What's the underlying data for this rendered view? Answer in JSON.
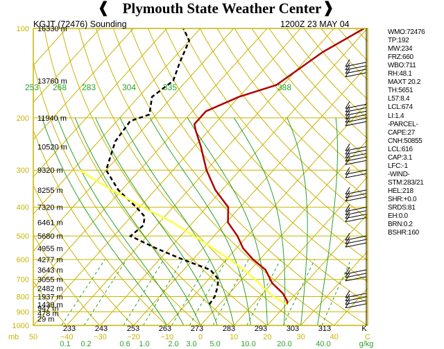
{
  "header": {
    "title": "Plymouth State Weather Center",
    "station": "KGJT (72476) Sounding",
    "time": "1200Z 23 MAY 04"
  },
  "colors": {
    "temperature": "#b00000",
    "dewpoint": "#000000",
    "parcel": "#ffff40",
    "isotherm": "#c8b400",
    "dry_adiabat": "#c8b400",
    "moist_adiabat": "#2aa02a",
    "mixing_ratio": "#2aa02a",
    "text_gold": "#c8b400",
    "text_green": "#2aa02a"
  },
  "stats": [
    "WMO:72476",
    "TP:192",
    "MW:234",
    "FRZ:660",
    "WBO:711",
    "RH:48.1",
    "MAXT 20.2",
    "TH:5651",
    "L57:8.4",
    "LCL:674",
    "LI:1.4",
    "-PARCEL-",
    "CAPE:27",
    "CNH:50855",
    "LCL:616",
    "CAP:3.1",
    "LFC:-1",
    "-WIND-",
    "STM:283/21",
    "HEL:218",
    "SHR:+0.0",
    "SRDS:81",
    "EH:0.0",
    "BRN:0.2",
    "BSHR:160"
  ],
  "chart_data": {
    "type": "line",
    "title": "",
    "xlabel": "",
    "ylabel": "mb",
    "ylim": [
      1000,
      100
    ],
    "xlim": [
      -50,
      50
    ],
    "pressure_ticks": [
      100,
      200,
      300,
      400,
      500,
      600,
      700,
      800,
      900,
      1000
    ],
    "pressure_labels": [
      "100",
      "200",
      "300",
      "400",
      "500",
      "600",
      "700",
      "800",
      "900",
      "1000"
    ],
    "height_labels": [
      {
        "p": 100,
        "label": "16330 m"
      },
      {
        "p": 150,
        "label": "13760 m"
      },
      {
        "p": 200,
        "label": "11940 m"
      },
      {
        "p": 250,
        "label": "10520 m"
      },
      {
        "p": 300,
        "label": "9320 m"
      },
      {
        "p": 350,
        "label": "8255 m"
      },
      {
        "p": 400,
        "label": "7320 m"
      },
      {
        "p": 450,
        "label": "6461 m"
      },
      {
        "p": 500,
        "label": "5680 m"
      },
      {
        "p": 550,
        "label": "4955 m"
      },
      {
        "p": 600,
        "label": "4277 m"
      },
      {
        "p": 650,
        "label": "3643 m"
      },
      {
        "p": 700,
        "label": "3055 m"
      },
      {
        "p": 750,
        "label": "2482 m"
      },
      {
        "p": 800,
        "label": "1937 m"
      },
      {
        "p": 850,
        "label": "1439 m"
      },
      {
        "p": 875,
        "label": "947 m"
      },
      {
        "p": 910,
        "label": "478 m"
      },
      {
        "p": 950,
        "label": "29 m"
      }
    ],
    "temp_ticks": [
      -50,
      -40,
      -30,
      -20,
      -10,
      0,
      10,
      20,
      30,
      40,
      50
    ],
    "temp_tick_labels": [
      "50",
      "−40",
      "−30",
      "−20",
      "−10",
      "0",
      "10",
      "20",
      "30",
      "40",
      "C"
    ],
    "kelvin_ticks": [
      233,
      243,
      253,
      263,
      273,
      283,
      293,
      303,
      313
    ],
    "kelvin_tick_labels": [
      "233",
      "243",
      "253",
      "263",
      "273",
      "283",
      "293",
      "303",
      "313",
      "K"
    ],
    "theta_labels": [
      "253",
      "268",
      "283",
      "304",
      "335",
      "388"
    ],
    "mixing_ratio_labels": [
      "0.1",
      "0.2",
      "0.6",
      "1.0",
      "2.0",
      "3.0",
      "5.0",
      "10.0",
      "20.0",
      "40.0",
      "g/kg"
    ],
    "series": [
      {
        "name": "temperature",
        "x": [
          20.2,
          19.5,
          16.0,
          10.0,
          4.5,
          -2.0,
          -8.0,
          -13.0,
          -19.5,
          -23.5,
          -32.0,
          -40.0,
          -48.0,
          -54.0,
          -56.0,
          -56.0,
          -50.0,
          -42.0,
          -40.0,
          -37.0,
          -31.0
        ],
        "y": [
          850,
          830,
          780,
          720,
          650,
          600,
          550,
          500,
          450,
          400,
          350,
          300,
          250,
          220,
          210,
          190,
          170,
          155,
          140,
          120,
          100
        ]
      },
      {
        "name": "dewpoint",
        "x": [
          -3.0,
          -3.5,
          -5.0,
          -7.0,
          -12.0,
          -23.0,
          -34.0,
          -45.0,
          -44.0,
          -46.0,
          -51.0,
          -61.0,
          -70.0,
          -75.0,
          -76.0,
          -72.0,
          -76.0,
          -74.0,
          -77.0,
          -80.0,
          -85.0
        ],
        "y": [
          850,
          800,
          750,
          700,
          650,
          600,
          550,
          500,
          460,
          430,
          400,
          350,
          300,
          240,
          205,
          195,
          170,
          150,
          130,
          110,
          100
        ]
      },
      {
        "name": "parcel",
        "x": [
          20.2,
          14.0,
          9.0,
          4.0,
          -2.0,
          -9.0,
          -17.0,
          -26.0,
          -36.0,
          -49.0,
          -63.0,
          -78.0
        ],
        "y": [
          850,
          800,
          750,
          700,
          650,
          600,
          550,
          500,
          450,
          400,
          350,
          300
        ]
      }
    ],
    "wind_levels": [
      {
        "p": 130,
        "count": 4
      },
      {
        "p": 180,
        "count": 6
      },
      {
        "p": 250,
        "count": 5
      },
      {
        "p": 300,
        "count": 2
      },
      {
        "p": 350,
        "count": 3
      },
      {
        "p": 400,
        "count": 4
      },
      {
        "p": 500,
        "count": 3
      },
      {
        "p": 650,
        "count": 3
      },
      {
        "p": 780,
        "count": 4
      }
    ]
  }
}
